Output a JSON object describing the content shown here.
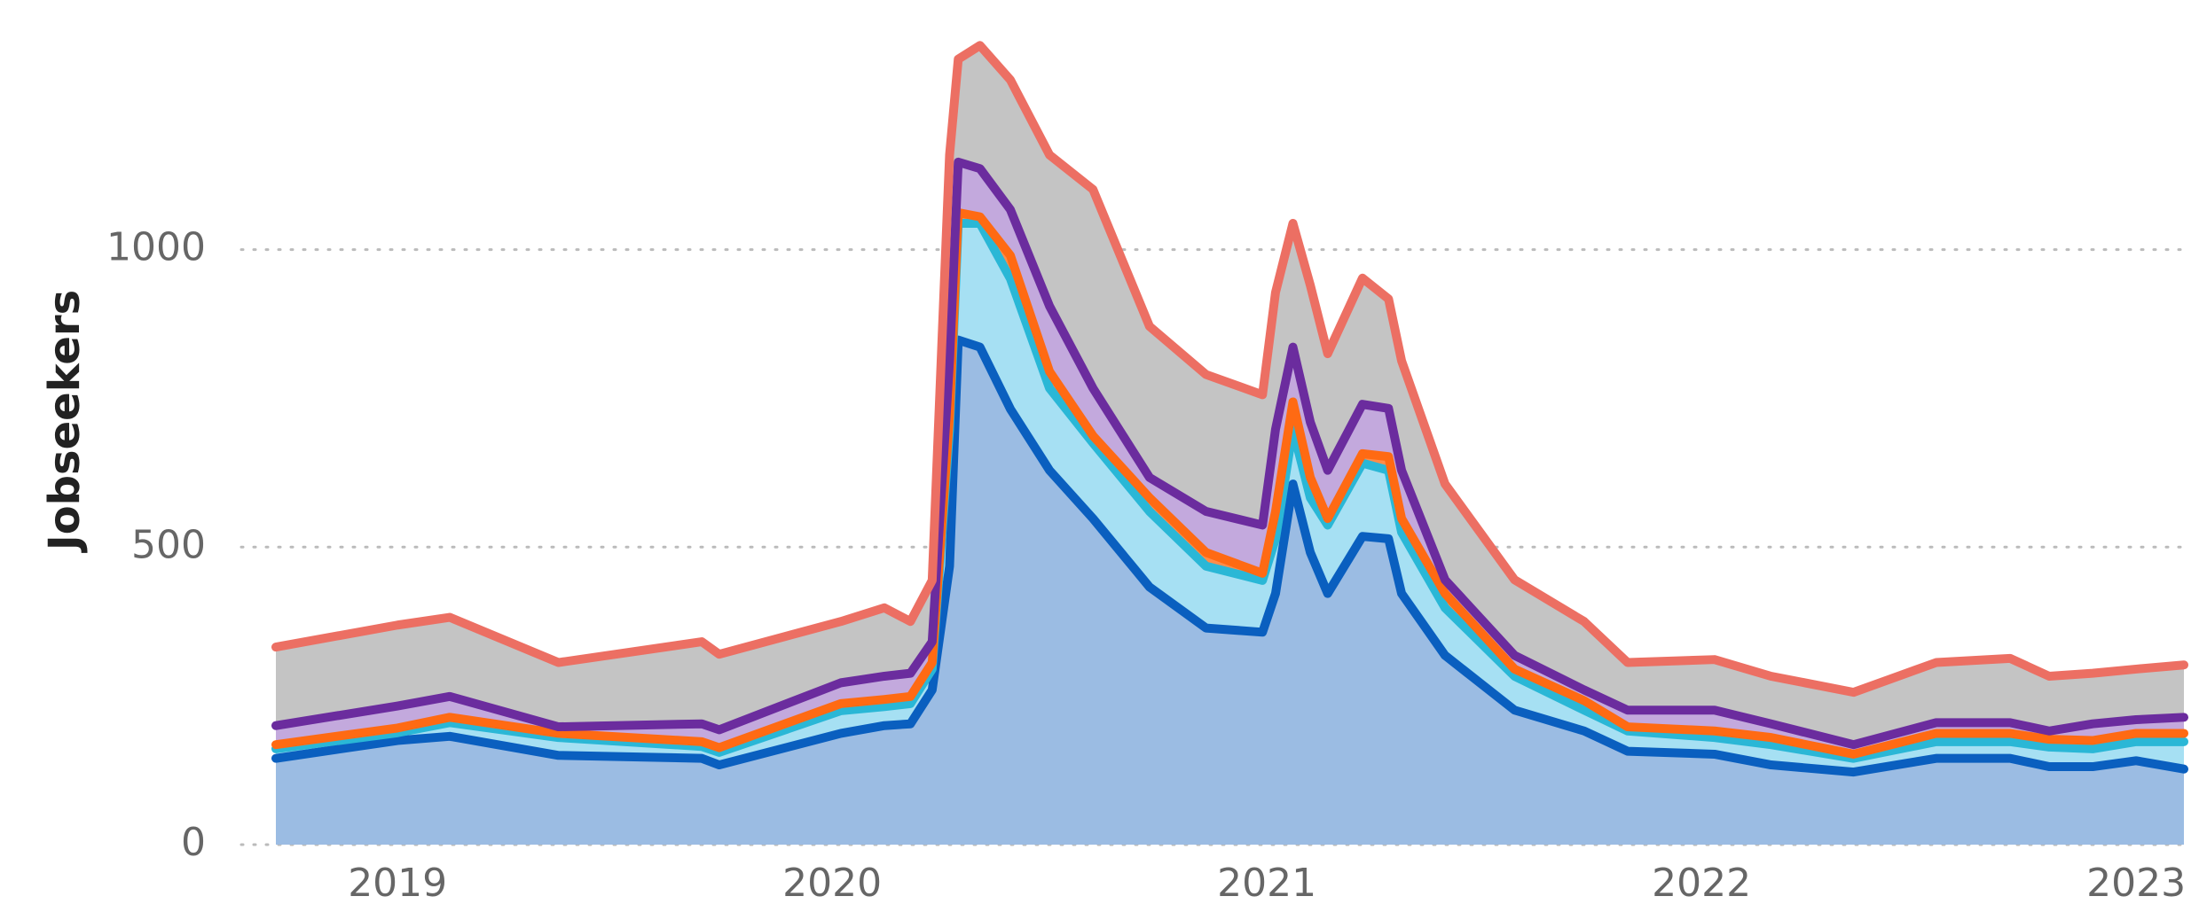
{
  "chart_data": {
    "type": "stacked-area",
    "y_label": "Jobseekers",
    "x": [
      2018.72,
      2019.0,
      2019.12,
      2019.37,
      2019.7,
      2019.74,
      2020.02,
      2020.12,
      2020.18,
      2020.23,
      2020.27,
      2020.29,
      2020.34,
      2020.41,
      2020.5,
      2020.6,
      2020.73,
      2020.86,
      2020.99,
      2021.02,
      2021.06,
      2021.1,
      2021.14,
      2021.22,
      2021.28,
      2021.31,
      2021.41,
      2021.57,
      2021.73,
      2021.83,
      2022.03,
      2022.16,
      2022.35,
      2022.54,
      2022.71,
      2022.8,
      2022.9,
      2023.0,
      2023.11
    ],
    "series": [
      {
        "color": "#0a5fbf",
        "fill": "#9bbce3",
        "values": [
          145,
          175,
          182,
          150,
          145,
          134,
          187,
          200,
          203,
          260,
          468,
          848,
          836,
          732,
          629,
          548,
          433,
          364,
          357,
          422,
          606,
          491,
          422,
          518,
          514,
          422,
          318,
          226,
          191,
          157,
          152,
          134,
          122,
          145,
          145,
          131,
          131,
          141,
          127
        ]
      },
      {
        "color": "#2ab7d6",
        "fill": "#a6e0f3",
        "values": [
          16,
          13,
          23,
          30,
          20,
          21,
          38,
          32,
          34,
          35,
          230,
          196,
          208,
          219,
          138,
          127,
          127,
          104,
          87,
          92,
          92,
          92,
          115,
          123,
          115,
          103,
          80,
          57,
          35,
          34,
          28,
          34,
          23,
          28,
          28,
          33,
          30,
          32,
          46
        ]
      },
      {
        "color": "#ff6a13",
        "fill": "#ff8c4a",
        "values": [
          7,
          8,
          9,
          7,
          8,
          8,
          12,
          12,
          12,
          11,
          23,
          18,
          11,
          39,
          28,
          12,
          23,
          23,
          12,
          46,
          46,
          34,
          11,
          16,
          23,
          23,
          24,
          12,
          16,
          7,
          11,
          12,
          7,
          14,
          14,
          13,
          14,
          14,
          14
        ]
      },
      {
        "color": "#6b2c9e",
        "fill": "#c3a9dd",
        "values": [
          32,
          37,
          35,
          11,
          30,
          30,
          35,
          39,
          39,
          35,
          92,
          85,
          81,
          77,
          110,
          80,
          34,
          69,
          81,
          138,
          92,
          93,
          81,
          83,
          81,
          81,
          23,
          23,
          18,
          28,
          35,
          23,
          16,
          18,
          18,
          14,
          28,
          23,
          27
        ]
      },
      {
        "color": "#ec6f63",
        "fill": "#c4c4c4",
        "values": [
          132,
          136,
          133,
          108,
          138,
          127,
          103,
          115,
          87,
          103,
          346,
          173,
          207,
          218,
          254,
          334,
          254,
          230,
          219,
          230,
          208,
          230,
          196,
          212,
          184,
          184,
          161,
          127,
          115,
          80,
          85,
          80,
          88,
          101,
          108,
          92,
          85,
          85,
          88
        ]
      }
    ],
    "xlim": [
      2018.72,
      2023.11
    ],
    "xticks": [
      2019,
      2020,
      2021,
      2022,
      2023
    ],
    "ylim": [
      0,
      1400
    ],
    "yticks": [
      0,
      500,
      1000
    ],
    "grid": true
  }
}
